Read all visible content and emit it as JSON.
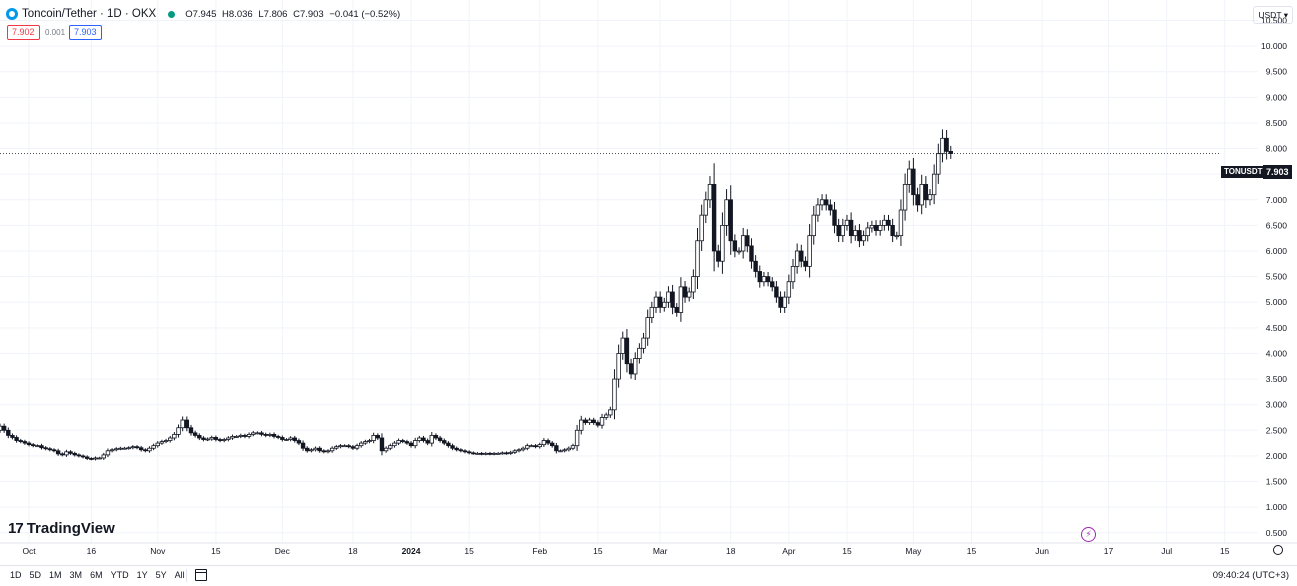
{
  "header": {
    "title": "Toncoin/Tether · 1D · OKX",
    "open_label": "O",
    "open": "7.945",
    "high_label": "H",
    "high": "8.036",
    "low_label": "L",
    "low": "7.806",
    "close_label": "C",
    "close": "7.903",
    "change": "−0.041 (−0.52%)"
  },
  "trade": {
    "sell_price": "7.902",
    "spread": "0.001",
    "buy_price": "7.903"
  },
  "currency_selector": "USDT ▾",
  "last_price": {
    "ticker": "TONUSDT",
    "value": "7.903"
  },
  "brand": {
    "mark": "17",
    "name": "TradingView"
  },
  "bottom_bar": {
    "ranges": [
      "1D",
      "5D",
      "1M",
      "3M",
      "6M",
      "YTD",
      "1Y",
      "5Y",
      "All"
    ],
    "clock": "09:40:24 (UTC+3)"
  },
  "colors": {
    "candle_outline": "#131722",
    "up_fill": "#ffffff",
    "down_fill": "#131722",
    "grid": "#f0f3fa",
    "sell": "#f23645",
    "buy": "#2962ff"
  },
  "chart_data": {
    "type": "candlestick",
    "title": "Toncoin/Tether · 1D · OKX",
    "ylim": [
      0.3,
      10.9
    ],
    "y_ticks": [
      10.5,
      10.0,
      9.5,
      9.0,
      8.5,
      8.0,
      7.5,
      7.0,
      6.5,
      6.0,
      5.5,
      5.0,
      4.5,
      4.0,
      3.5,
      3.0,
      2.5,
      2.0,
      1.5,
      1.0,
      0.5
    ],
    "y_tick_labels": [
      "10.500",
      "10.000",
      "9.500",
      "9.000",
      "8.500",
      "8.000",
      "7.500",
      "7.000",
      "6.500",
      "6.000",
      "5.500",
      "5.000",
      "4.500",
      "4.000",
      "3.500",
      "3.000",
      "2.500",
      "2.000",
      "1.500",
      "1.000",
      "0.500"
    ],
    "x_start": "2023-09-24",
    "x_end": "2024-07-23",
    "x_ticks": [
      {
        "date": "2023-10-01",
        "label": "Oct"
      },
      {
        "date": "2023-10-16",
        "label": "16"
      },
      {
        "date": "2023-11-01",
        "label": "Nov"
      },
      {
        "date": "2023-11-15",
        "label": "15"
      },
      {
        "date": "2023-12-01",
        "label": "Dec"
      },
      {
        "date": "2023-12-18",
        "label": "18"
      },
      {
        "date": "2024-01-01",
        "label": "2024"
      },
      {
        "date": "2024-01-15",
        "label": "15"
      },
      {
        "date": "2024-02-01",
        "label": "Feb"
      },
      {
        "date": "2024-02-15",
        "label": "15"
      },
      {
        "date": "2024-03-01",
        "label": "Mar"
      },
      {
        "date": "2024-03-18",
        "label": "18"
      },
      {
        "date": "2024-04-01",
        "label": "Apr"
      },
      {
        "date": "2024-04-15",
        "label": "15"
      },
      {
        "date": "2024-05-01",
        "label": "May"
      },
      {
        "date": "2024-05-15",
        "label": "15"
      },
      {
        "date": "2024-06-01",
        "label": "Jun"
      },
      {
        "date": "2024-06-17",
        "label": "17"
      },
      {
        "date": "2024-07-01",
        "label": "Jul"
      },
      {
        "date": "2024-07-15",
        "label": "15"
      }
    ],
    "last_price_line": 7.903,
    "series": [
      {
        "first_date": "2023-09-24",
        "closes": [
          2.58,
          2.5,
          2.4,
          2.36,
          2.3,
          2.28,
          2.25,
          2.22,
          2.2,
          2.2,
          2.16,
          2.14,
          2.12,
          2.1,
          2.04,
          2.02,
          2.08,
          2.05,
          2.02,
          2.0,
          1.98,
          1.95,
          1.94,
          1.96,
          1.96,
          2.02,
          2.1,
          2.12,
          2.14,
          2.15,
          2.15,
          2.16,
          2.18,
          2.16,
          2.12,
          2.1,
          2.15,
          2.2,
          2.25,
          2.28,
          2.3,
          2.35,
          2.42,
          2.55,
          2.7,
          2.55,
          2.45,
          2.4,
          2.35,
          2.32,
          2.33,
          2.36,
          2.32,
          2.3,
          2.32,
          2.35,
          2.38,
          2.38,
          2.4,
          2.38,
          2.42,
          2.45,
          2.45,
          2.42,
          2.4,
          2.42,
          2.38,
          2.36,
          2.32,
          2.32,
          2.35,
          2.3,
          2.25,
          2.15,
          2.1,
          2.12,
          2.15,
          2.1,
          2.08,
          2.1,
          2.15,
          2.18,
          2.2,
          2.2,
          2.18,
          2.15,
          2.2,
          2.25,
          2.28,
          2.3,
          2.4,
          2.35,
          2.1,
          2.15,
          2.2,
          2.25,
          2.3,
          2.28,
          2.25,
          2.2,
          2.3,
          2.35,
          2.3,
          2.25,
          2.4,
          2.35,
          2.3,
          2.25,
          2.2,
          2.15,
          2.12,
          2.1,
          2.08,
          2.06,
          2.05,
          2.05,
          2.04,
          2.05,
          2.04,
          2.05,
          2.05,
          2.06,
          2.05,
          2.07,
          2.1,
          2.12,
          2.15,
          2.2,
          2.2,
          2.18,
          2.22,
          2.3,
          2.25,
          2.2,
          2.1,
          2.1,
          2.12,
          2.15,
          2.2,
          2.5,
          2.7,
          2.65,
          2.7,
          2.65,
          2.6,
          2.75,
          2.8,
          2.9,
          3.5,
          4.0,
          4.3,
          3.8,
          3.6,
          3.9,
          4.1,
          4.3,
          4.7,
          4.9,
          5.1,
          4.9,
          5.0,
          5.2,
          4.9,
          4.8,
          5.3,
          5.1,
          5.2,
          5.5,
          6.2,
          6.7,
          7.0,
          7.3,
          6.0,
          5.8,
          6.5,
          7.0,
          6.2,
          6.0,
          6.0,
          6.3,
          6.1,
          5.8,
          5.6,
          5.4,
          5.5,
          5.4,
          5.3,
          5.1,
          4.9,
          5.1,
          5.4,
          5.7,
          6.0,
          5.8,
          5.7,
          6.3,
          6.7,
          6.9,
          7.0,
          6.9,
          6.8,
          6.5,
          6.3,
          6.5,
          6.6,
          6.3,
          6.4,
          6.2,
          6.3,
          6.45,
          6.5,
          6.4,
          6.5,
          6.6,
          6.5,
          6.3,
          6.3,
          6.8,
          7.3,
          7.6,
          7.1,
          6.9,
          7.3,
          7.0,
          7.1,
          7.5,
          7.9,
          8.2,
          7.945,
          7.903
        ],
        "opens": [
          2.5,
          2.58,
          2.5,
          2.4,
          2.36,
          2.3,
          2.28,
          2.25,
          2.22,
          2.2,
          2.2,
          2.16,
          2.14,
          2.12,
          2.1,
          2.04,
          2.02,
          2.08,
          2.05,
          2.02,
          2.0,
          1.98,
          1.95,
          1.94,
          1.96,
          1.96,
          2.02,
          2.1,
          2.12,
          2.14,
          2.15,
          2.15,
          2.16,
          2.18,
          2.16,
          2.12,
          2.1,
          2.15,
          2.2,
          2.25,
          2.28,
          2.3,
          2.35,
          2.42,
          2.55,
          2.7,
          2.55,
          2.45,
          2.4,
          2.35,
          2.32,
          2.33,
          2.36,
          2.32,
          2.3,
          2.32,
          2.35,
          2.38,
          2.38,
          2.4,
          2.38,
          2.42,
          2.45,
          2.45,
          2.42,
          2.4,
          2.42,
          2.38,
          2.36,
          2.32,
          2.32,
          2.35,
          2.3,
          2.25,
          2.15,
          2.1,
          2.12,
          2.15,
          2.1,
          2.08,
          2.1,
          2.15,
          2.18,
          2.2,
          2.2,
          2.18,
          2.15,
          2.2,
          2.25,
          2.28,
          2.3,
          2.4,
          2.35,
          2.1,
          2.15,
          2.2,
          2.25,
          2.3,
          2.28,
          2.25,
          2.2,
          2.3,
          2.35,
          2.3,
          2.25,
          2.4,
          2.35,
          2.3,
          2.25,
          2.2,
          2.15,
          2.12,
          2.1,
          2.08,
          2.06,
          2.05,
          2.05,
          2.04,
          2.05,
          2.04,
          2.05,
          2.05,
          2.06,
          2.05,
          2.07,
          2.1,
          2.12,
          2.15,
          2.2,
          2.2,
          2.18,
          2.22,
          2.3,
          2.25,
          2.2,
          2.1,
          2.1,
          2.12,
          2.15,
          2.2,
          2.5,
          2.7,
          2.65,
          2.7,
          2.65,
          2.6,
          2.75,
          2.8,
          2.9,
          3.5,
          4.0,
          4.3,
          3.8,
          3.6,
          3.9,
          4.1,
          4.3,
          4.7,
          4.9,
          5.1,
          4.9,
          5.0,
          5.2,
          4.9,
          4.8,
          5.3,
          5.1,
          5.2,
          5.5,
          6.2,
          6.7,
          7.0,
          7.3,
          6.0,
          5.8,
          6.5,
          7.0,
          6.2,
          6.0,
          6.0,
          6.3,
          6.1,
          5.8,
          5.6,
          5.4,
          5.5,
          5.4,
          5.3,
          5.1,
          4.9,
          5.1,
          5.4,
          5.7,
          6.0,
          5.8,
          5.7,
          6.3,
          6.7,
          6.9,
          7.0,
          6.9,
          6.8,
          6.5,
          6.3,
          6.5,
          6.6,
          6.3,
          6.4,
          6.2,
          6.3,
          6.45,
          6.5,
          6.4,
          6.5,
          6.6,
          6.5,
          6.3,
          6.3,
          6.8,
          7.3,
          7.6,
          7.1,
          6.9,
          7.3,
          7.0,
          7.1,
          7.5,
          7.9,
          8.2,
          7.945
        ]
      }
    ]
  }
}
